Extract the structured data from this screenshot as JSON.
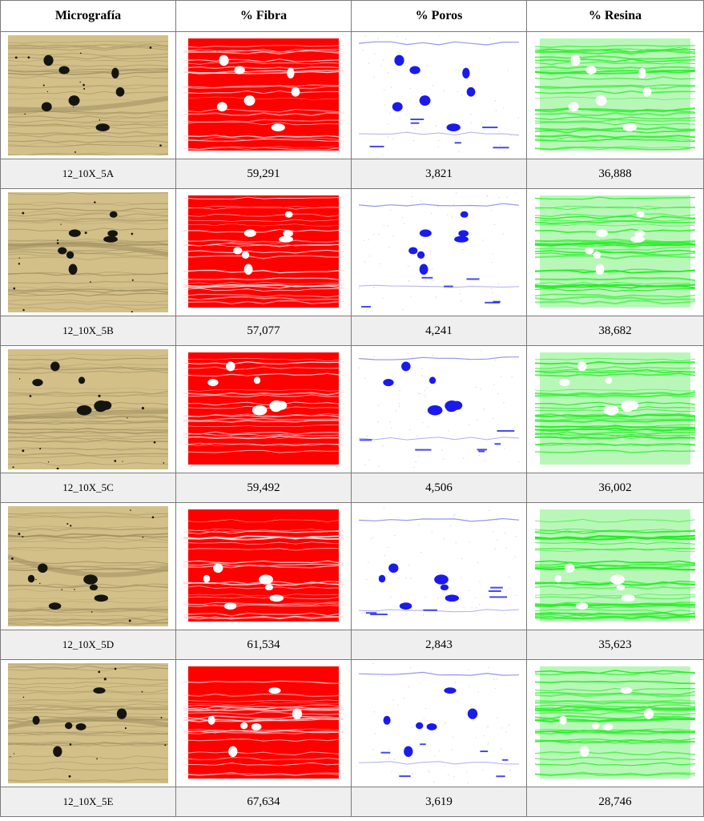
{
  "headers": [
    "Micrografía",
    "% Fibra",
    "% Poros",
    "% Resina"
  ],
  "colors": {
    "micro_bg": "#d3c089",
    "micro_dark": "#9c8d5e",
    "pore_black": "#151510",
    "fiber": "#ff0000",
    "pore_blue": "#1a1aee",
    "resin": "#22ee22"
  },
  "rows": [
    {
      "sample": "12_10X_5A",
      "fibra": "59,291",
      "poros": "3,821",
      "resina": "36,888"
    },
    {
      "sample": "12_10X_5B",
      "fibra": "57,077",
      "poros": "4,241",
      "resina": "38,682"
    },
    {
      "sample": "12_10X_5C",
      "fibra": "59,492",
      "poros": "4,506",
      "resina": "36,002"
    },
    {
      "sample": "12_10X_5D",
      "fibra": "61,534",
      "poros": "2,843",
      "resina": "35,623"
    },
    {
      "sample": "12_10X_5E",
      "fibra": "67,634",
      "poros": "3,619",
      "resina": "28,746"
    }
  ]
}
